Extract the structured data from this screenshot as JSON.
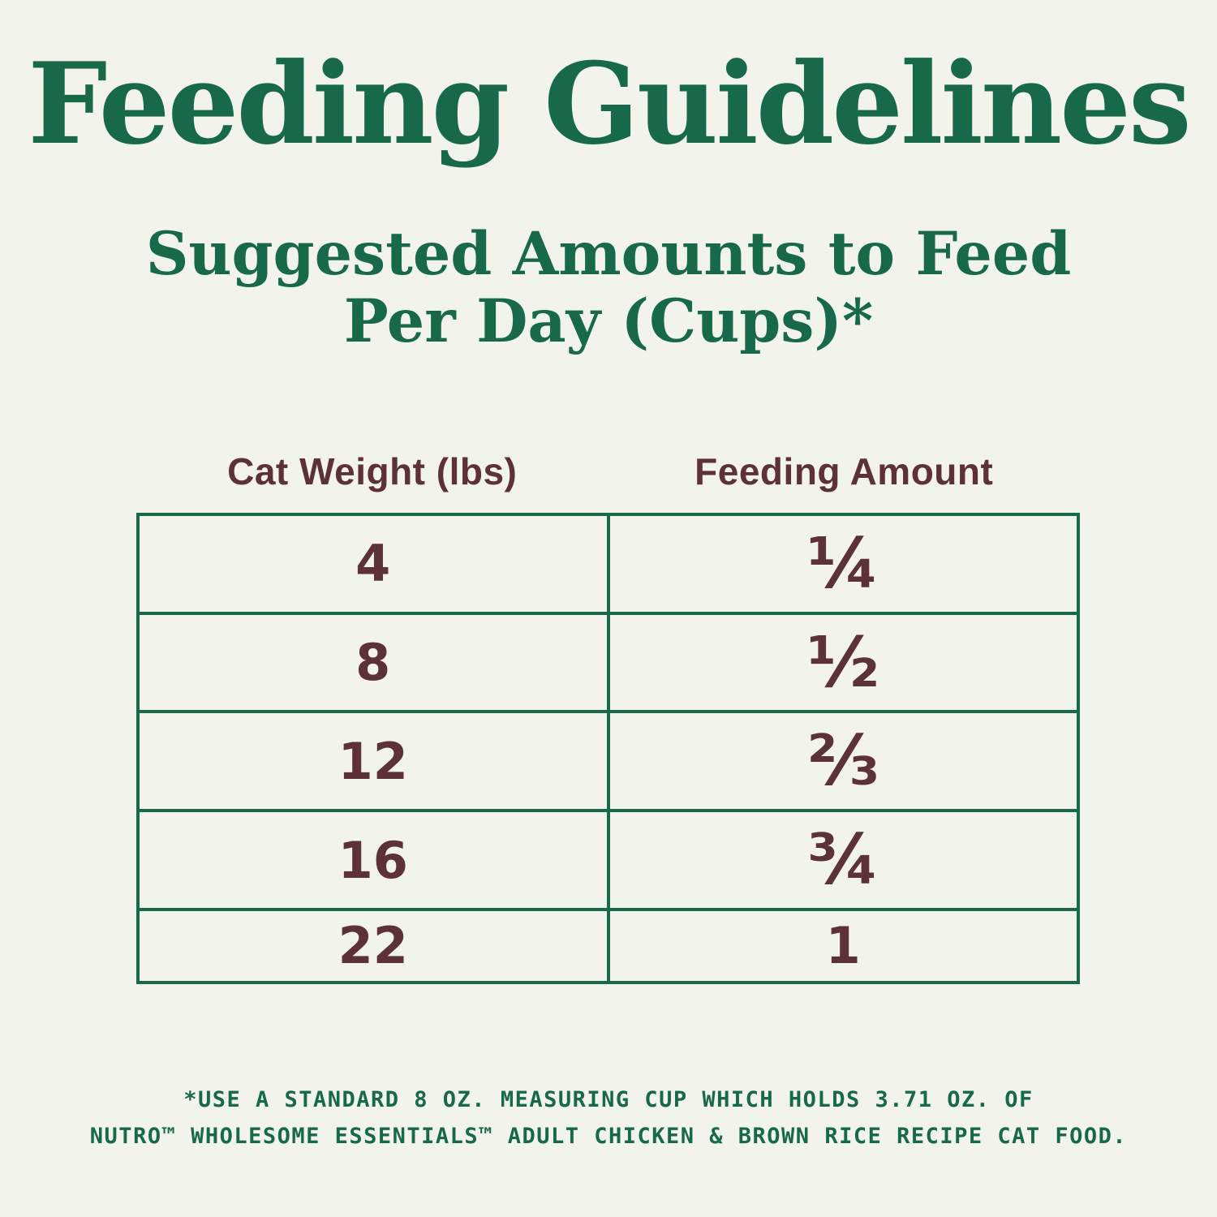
{
  "colors": {
    "background": "#f2f4ec",
    "green": "#17694a",
    "maroon": "#5c3137"
  },
  "header": {
    "title": "Feeding Guidelines",
    "subtitle_line1": "Suggested Amounts to Feed",
    "subtitle_line2": "Per Day (Cups)*"
  },
  "chart_data": {
    "type": "table",
    "title": "Feeding Guidelines",
    "subtitle": "Suggested Amounts to Feed Per Day (Cups)*",
    "columns": [
      "Cat Weight (lbs)",
      "Feeding Amount"
    ],
    "rows": [
      [
        "4",
        "¼"
      ],
      [
        "8",
        "½"
      ],
      [
        "12",
        "⅔"
      ],
      [
        "16",
        "¾"
      ],
      [
        "22",
        "1"
      ]
    ]
  },
  "footnote": {
    "line1": "*USE A STANDARD 8 OZ. MEASURING CUP WHICH HOLDS 3.71 OZ. OF",
    "line2": "NUTRO™ WHOLESOME ESSENTIALS™ ADULT CHICKEN & BROWN RICE RECIPE CAT FOOD."
  }
}
